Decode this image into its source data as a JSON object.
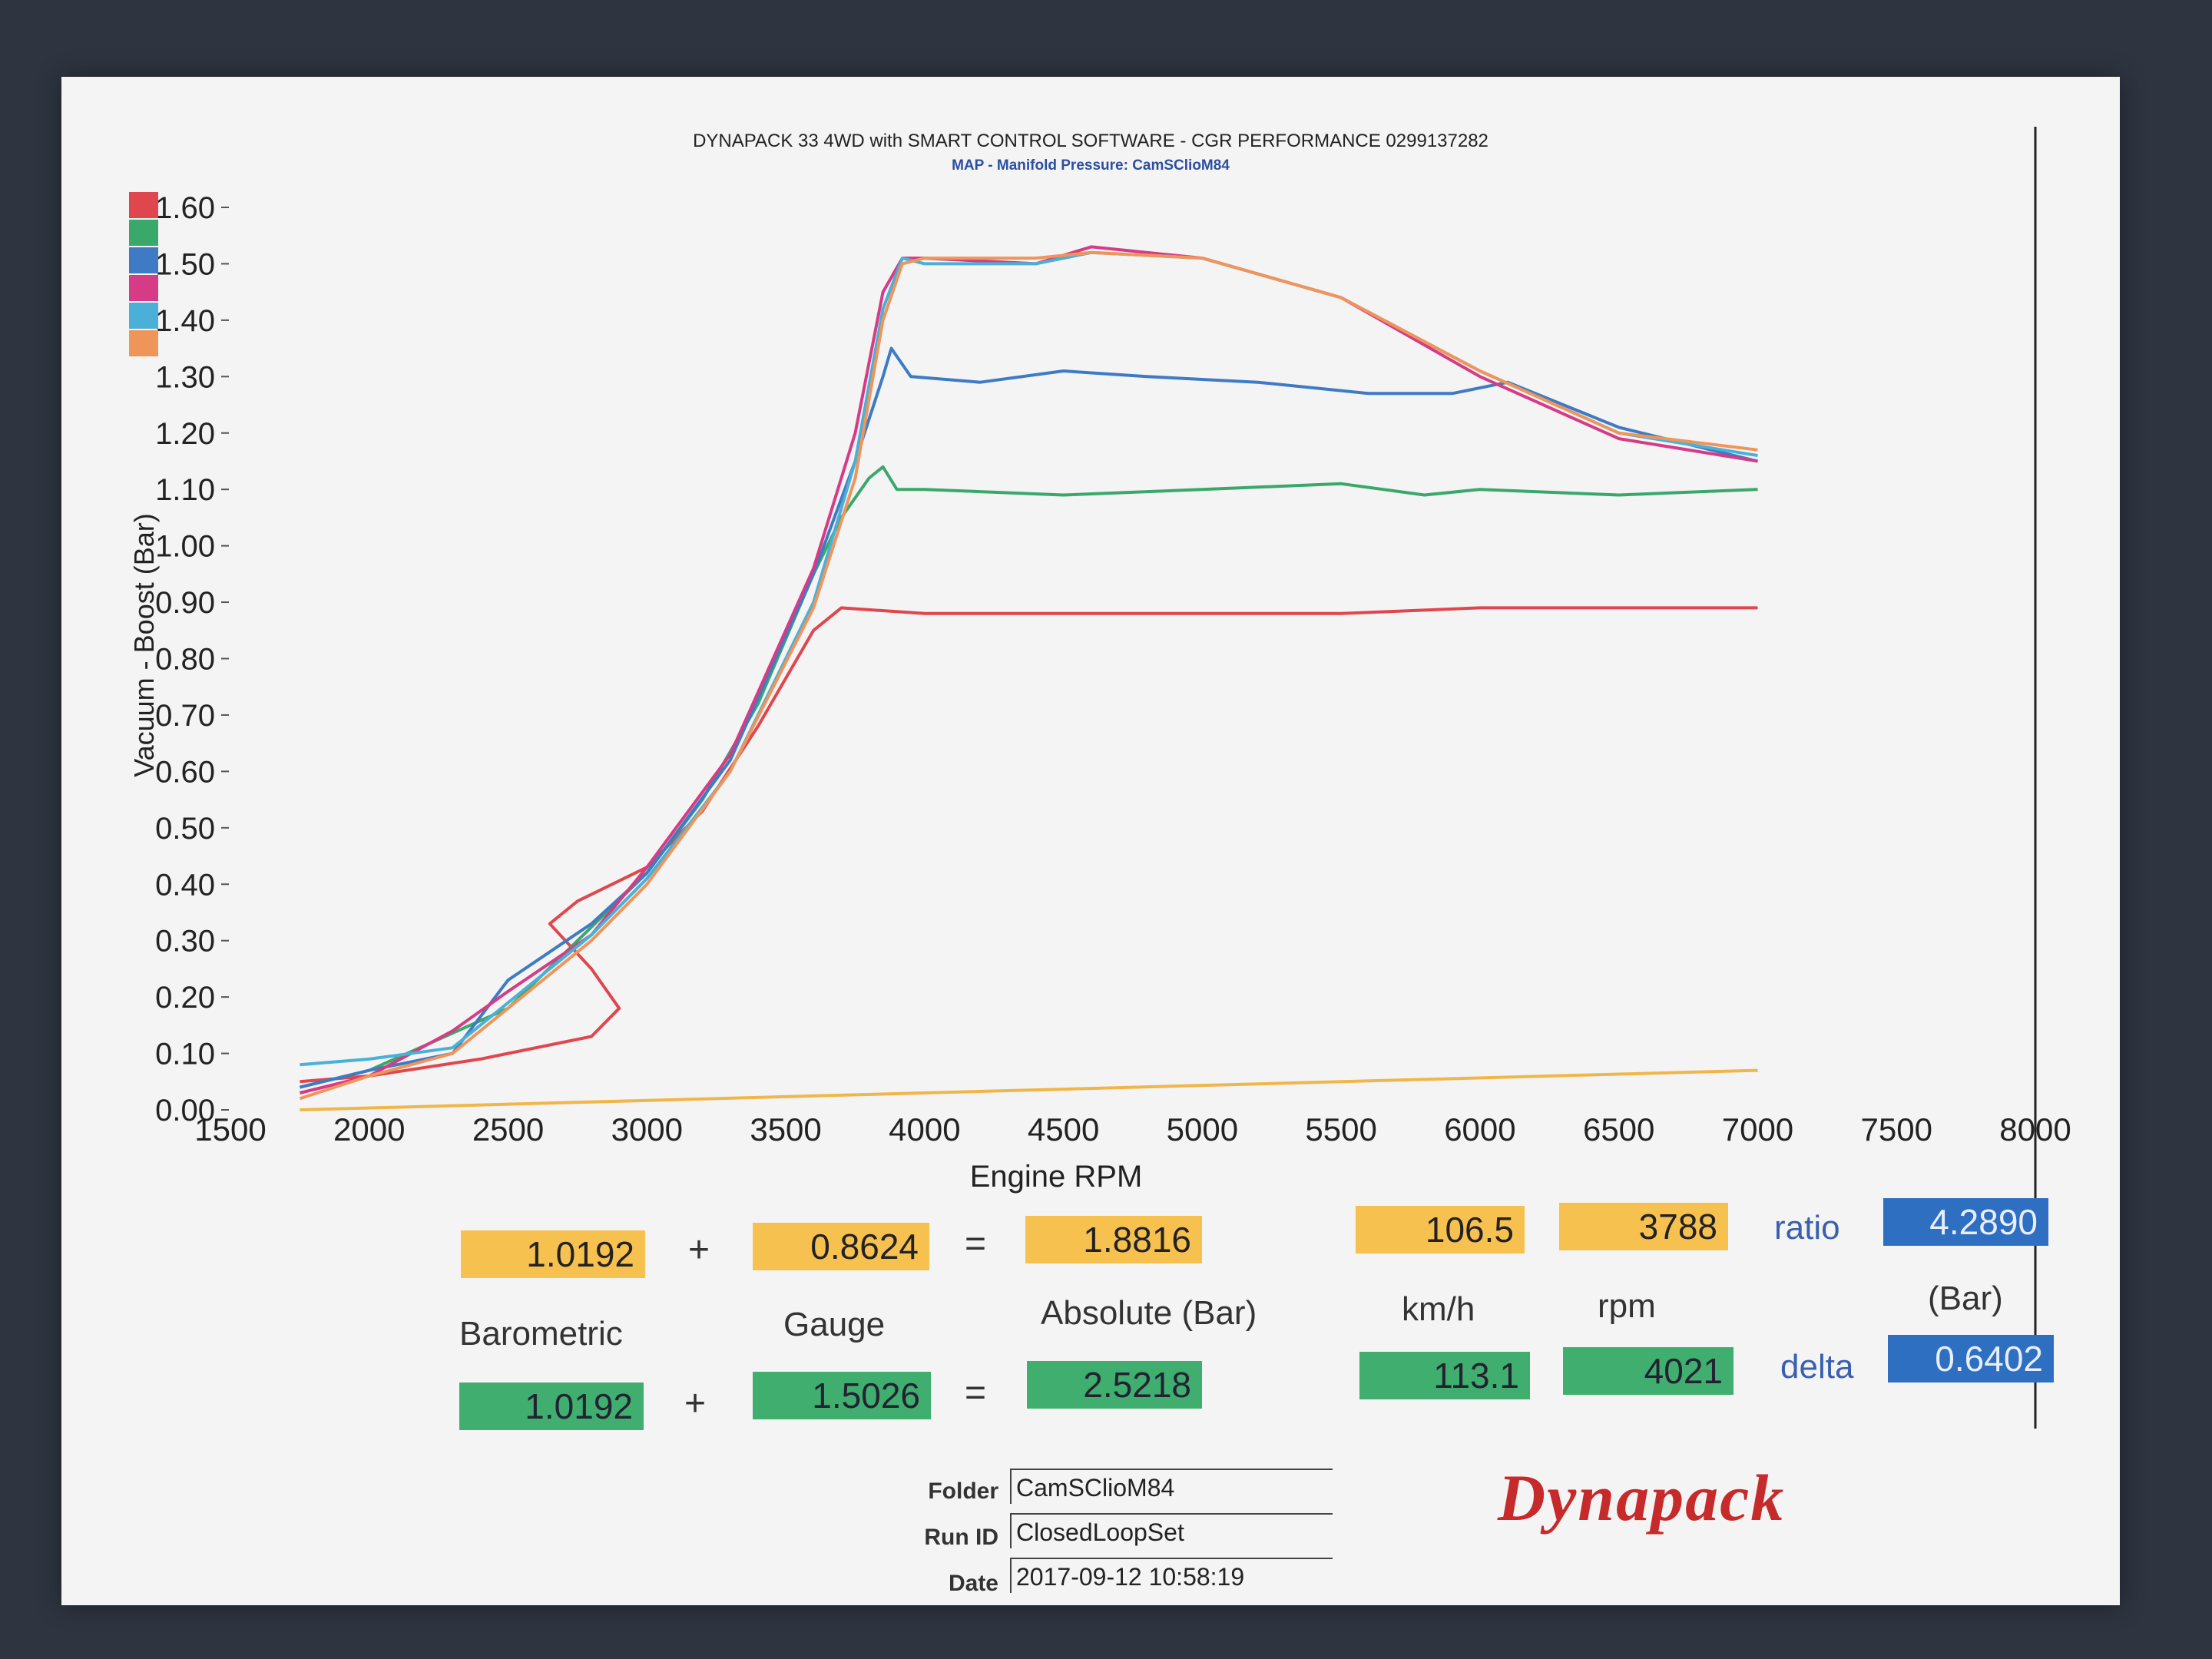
{
  "header": {
    "title": "DYNAPACK 33 4WD with SMART CONTROL SOFTWARE - CGR PERFORMANCE 0299137282",
    "subtitle": "MAP - Manifold Pressure: CamSClioM84"
  },
  "chart_data": {
    "type": "line",
    "xlabel": "Engine RPM",
    "ylabel": "Vacuum - Boost (Bar)",
    "xlim": [
      1500,
      8000
    ],
    "ylim": [
      0.0,
      1.6
    ],
    "x_ticks": [
      "1500",
      "2000",
      "2500",
      "3000",
      "3500",
      "4000",
      "4500",
      "5000",
      "5500",
      "6000",
      "6500",
      "7000",
      "7500",
      "8000"
    ],
    "y_ticks": [
      "0.00",
      "0.10",
      "0.20",
      "0.30",
      "0.40",
      "0.50",
      "0.60",
      "0.70",
      "0.80",
      "0.90",
      "1.00",
      "1.10",
      "1.20",
      "1.30",
      "1.40",
      "1.50",
      "1.60"
    ],
    "grid": false,
    "legend_position": "left",
    "legend_colors": [
      "#e0464e",
      "#3aa86a",
      "#3f7bc4",
      "#d63b85",
      "#4ab0d8",
      "#f0955a"
    ],
    "series": [
      {
        "color": "#e0464e",
        "x": [
          1750,
          2000,
          2400,
          2800,
          2900,
          2800,
          2650,
          2750,
          3000,
          3200,
          3400,
          3600,
          3700,
          4000,
          4500,
          5000,
          5500,
          6000,
          6500,
          7000
        ],
        "y": [
          0.05,
          0.06,
          0.09,
          0.13,
          0.18,
          0.25,
          0.33,
          0.37,
          0.43,
          0.53,
          0.68,
          0.85,
          0.89,
          0.88,
          0.88,
          0.88,
          0.88,
          0.89,
          0.89,
          0.89
        ]
      },
      {
        "color": "#3aa86a",
        "x": [
          1750,
          2000,
          2500,
          3000,
          3200,
          3400,
          3600,
          3700,
          3800,
          3850,
          3900,
          4000,
          4500,
          5000,
          5500,
          5800,
          6000,
          6500,
          7000
        ],
        "y": [
          0.04,
          0.07,
          0.18,
          0.42,
          0.55,
          0.72,
          0.95,
          1.05,
          1.12,
          1.14,
          1.1,
          1.1,
          1.09,
          1.1,
          1.11,
          1.09,
          1.1,
          1.09,
          1.1
        ]
      },
      {
        "color": "#3f7bc4",
        "x": [
          1750,
          2000,
          2300,
          2500,
          2800,
          3000,
          3300,
          3600,
          3750,
          3850,
          3880,
          3950,
          4200,
          4500,
          4800,
          5200,
          5600,
          5900,
          6100,
          6500,
          7000
        ],
        "y": [
          0.04,
          0.07,
          0.1,
          0.23,
          0.33,
          0.42,
          0.62,
          0.95,
          1.15,
          1.3,
          1.35,
          1.3,
          1.29,
          1.31,
          1.3,
          1.29,
          1.27,
          1.27,
          1.29,
          1.21,
          1.15
        ]
      },
      {
        "color": "#d63b85",
        "x": [
          1750,
          2000,
          2300,
          2500,
          2800,
          3000,
          3300,
          3600,
          3750,
          3850,
          3920,
          4000,
          4400,
          4600,
          5000,
          5500,
          6000,
          6500,
          7000
        ],
        "y": [
          0.03,
          0.06,
          0.14,
          0.21,
          0.31,
          0.43,
          0.63,
          0.96,
          1.2,
          1.45,
          1.51,
          1.51,
          1.5,
          1.53,
          1.51,
          1.44,
          1.3,
          1.19,
          1.15
        ]
      },
      {
        "color": "#4ab0d8",
        "x": [
          1750,
          2000,
          2300,
          2500,
          2800,
          3000,
          3300,
          3600,
          3750,
          3850,
          3920,
          4000,
          4400,
          4600,
          5000,
          5500,
          6000,
          6500,
          7000
        ],
        "y": [
          0.08,
          0.09,
          0.11,
          0.19,
          0.31,
          0.41,
          0.6,
          0.9,
          1.15,
          1.42,
          1.51,
          1.5,
          1.5,
          1.52,
          1.51,
          1.44,
          1.31,
          1.2,
          1.16
        ]
      },
      {
        "color": "#f0955a",
        "x": [
          1750,
          2000,
          2300,
          2500,
          2800,
          3000,
          3300,
          3600,
          3750,
          3850,
          3920,
          4000,
          4400,
          4600,
          5000,
          5500,
          6000,
          6500,
          7000
        ],
        "y": [
          0.02,
          0.06,
          0.1,
          0.18,
          0.3,
          0.4,
          0.6,
          0.89,
          1.12,
          1.4,
          1.5,
          1.51,
          1.51,
          1.52,
          1.51,
          1.44,
          1.31,
          1.2,
          1.17
        ]
      },
      {
        "color": "#f0b64a",
        "x": [
          1750,
          7000
        ],
        "y": [
          0.0,
          0.07
        ]
      }
    ]
  },
  "readouts": {
    "row1": {
      "barometric": "1.0192",
      "plus": "+",
      "gauge": "0.8624",
      "equals": "=",
      "absolute": "1.8816",
      "kmh": "106.5",
      "rpm": "3788",
      "ratio_label": "ratio",
      "ratio": "4.2890"
    },
    "labels": {
      "barometric": "Barometric",
      "gauge": "Gauge",
      "absolute": "Absolute (Bar)",
      "kmh": "km/h",
      "rpm": "rpm",
      "bar": "(Bar)"
    },
    "row2": {
      "barometric": "1.0192",
      "plus": "+",
      "gauge": "1.5026",
      "equals": "=",
      "absolute": "2.5218",
      "kmh": "113.1",
      "rpm": "4021",
      "delta_label": "delta",
      "delta": "0.6402"
    }
  },
  "meta": {
    "folder_label": "Folder",
    "folder": "CamSClioM84",
    "runid_label": "Run ID",
    "runid": "ClosedLoopSet",
    "date_label": "Date",
    "date": "2017-09-12 10:58:19"
  },
  "brand": {
    "logo": "Dynapack"
  }
}
